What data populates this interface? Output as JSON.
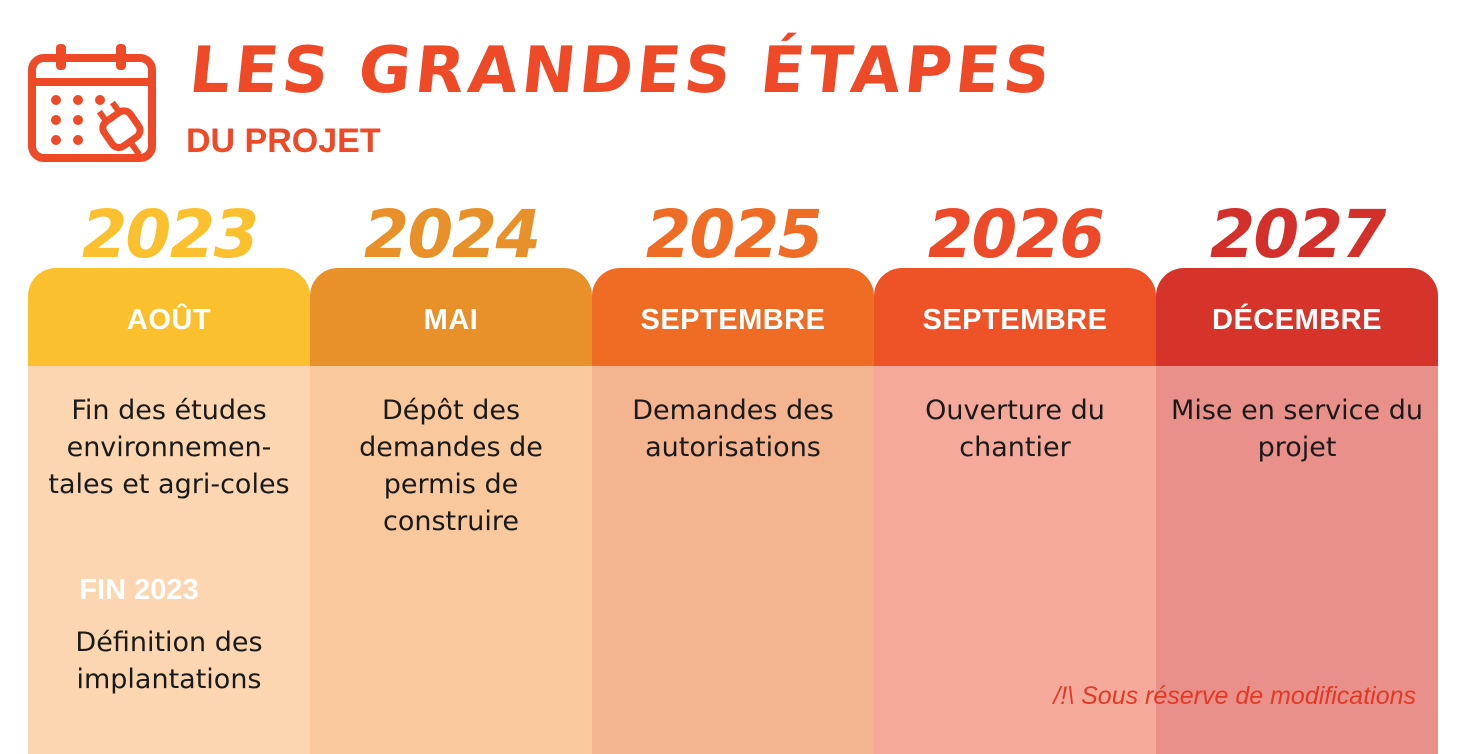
{
  "header": {
    "title": "LES GRANDES ÉTAPES",
    "subtitle": "DU PROJET",
    "icon": "calendar-plug-icon",
    "accent_color": "#ee4a27"
  },
  "milestones": [
    {
      "year": "2023",
      "month": "AOÛT",
      "description": "Fin des études environnemen-tales et agri-coles",
      "extra_label": "FIN 2023",
      "extra_description": "Définition des implantations",
      "year_color": "#fbc02d",
      "tab_color": "#fbc02d",
      "panel_color": "#fcd6b0"
    },
    {
      "year": "2024",
      "month": "MAI",
      "description": "Dépôt des demandes de permis de construire",
      "year_color": "#e8912a",
      "tab_color": "#e8912a",
      "panel_color": "#f9c89c"
    },
    {
      "year": "2025",
      "month": "SEPTEMBRE",
      "description": "Demandes des autorisations",
      "year_color": "#ef6c25",
      "tab_color": "#ef6c25",
      "panel_color": "#f3b48f"
    },
    {
      "year": "2026",
      "month": "SEPTEMBRE",
      "description": "Ouverture du chantier",
      "year_color": "#ec4a29",
      "tab_color": "#ee5227",
      "panel_color": "#f5a99a"
    },
    {
      "year": "2027",
      "month": "DÉCEMBRE",
      "description": "Mise en service du projet",
      "year_color": "#d3302b",
      "tab_color": "#d6332b",
      "panel_color": "#ea908a"
    }
  ],
  "disclaimer": "/!\\ Sous réserve de modifications"
}
